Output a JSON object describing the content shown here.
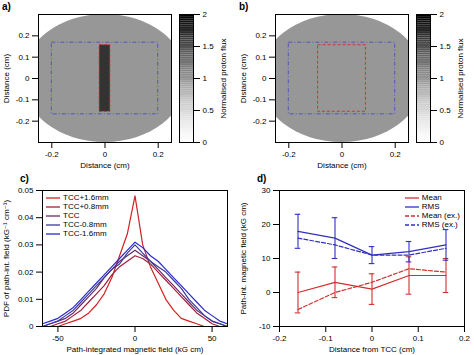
{
  "chart_data": [
    {
      "type": "image",
      "title": "a)",
      "xlabel": "Distance (cm)",
      "ylabel": "Distance (cm)",
      "xlim": [
        -0.25,
        0.25
      ],
      "xticks": [
        -0.2,
        0,
        0.2
      ],
      "ylim": [
        -0.3,
        0.3
      ],
      "yticks": [
        -0.2,
        -0.1,
        0,
        0.1,
        0.2
      ],
      "colorbar": {
        "label": "Normalised proton flux",
        "range": [
          0,
          2
        ],
        "ticks": [
          0,
          0.5,
          1,
          1.5,
          2
        ]
      }
    },
    {
      "type": "image",
      "title": "b)",
      "xlabel": "Distance (cm)",
      "ylabel": "Distance (cm)",
      "xlim": [
        -0.25,
        0.25
      ],
      "xticks": [
        -0.2,
        0,
        0.2
      ],
      "ylim": [
        -0.3,
        0.3
      ],
      "yticks": [
        -0.2,
        -0.1,
        0,
        0.1,
        0.2
      ],
      "colorbar": {
        "label": "Normalised proton flux",
        "range": [
          0,
          2
        ],
        "ticks": [
          0,
          0.5,
          1,
          1.5,
          2
        ]
      }
    },
    {
      "type": "line",
      "title": "c)",
      "xlabel": "Path-integrated magnetic field (kG cm)",
      "ylabel": "PDF of path-int. field (kG⁻¹ cm⁻¹)",
      "xlim": [
        -60,
        60
      ],
      "xticks": [
        -50,
        0,
        50
      ],
      "ylim": [
        0,
        0.05
      ],
      "yticks": [
        0,
        0.01,
        0.02,
        0.03,
        0.04,
        0.05
      ],
      "legend": "top-left",
      "x": [
        -60,
        -55,
        -50,
        -45,
        -40,
        -35,
        -30,
        -25,
        -20,
        -15,
        -10,
        -5,
        0,
        5,
        10,
        15,
        20,
        25,
        30,
        35,
        40,
        45,
        50,
        55,
        60
      ],
      "series": [
        {
          "name": "TCC+1.6mm",
          "color": "#d42020",
          "line_style": "solid",
          "values": [
            0,
            0,
            0,
            0.001,
            0.002,
            0.003,
            0.005,
            0.008,
            0.012,
            0.018,
            0.026,
            0.034,
            0.048,
            0.03,
            0.022,
            0.016,
            0.01,
            0.006,
            0.003,
            0.002,
            0.001,
            0,
            0,
            0,
            0
          ]
        },
        {
          "name": "TCC+0.8mm",
          "color": "#a0203a",
          "line_style": "solid",
          "values": [
            0,
            0,
            0.001,
            0.002,
            0.004,
            0.006,
            0.009,
            0.012,
            0.015,
            0.019,
            0.022,
            0.024,
            0.026,
            0.025,
            0.023,
            0.02,
            0.017,
            0.014,
            0.011,
            0.008,
            0.005,
            0.003,
            0.001,
            0,
            0
          ]
        },
        {
          "name": "TCC",
          "color": "#6a2a6a",
          "line_style": "solid",
          "values": [
            0,
            0.001,
            0.002,
            0.003,
            0.005,
            0.008,
            0.011,
            0.014,
            0.018,
            0.021,
            0.024,
            0.026,
            0.028,
            0.026,
            0.024,
            0.021,
            0.018,
            0.015,
            0.012,
            0.009,
            0.006,
            0.004,
            0.002,
            0.001,
            0
          ]
        },
        {
          "name": "TCC-0.8mm",
          "color": "#3a3a9a",
          "line_style": "solid",
          "values": [
            0,
            0.001,
            0.002,
            0.004,
            0.006,
            0.009,
            0.012,
            0.015,
            0.018,
            0.021,
            0.023,
            0.027,
            0.03,
            0.027,
            0.024,
            0.022,
            0.02,
            0.017,
            0.014,
            0.01,
            0.007,
            0.004,
            0.002,
            0.001,
            0
          ]
        },
        {
          "name": "TCC-1.6mm",
          "color": "#2a2ad0",
          "line_style": "solid",
          "values": [
            0.001,
            0.002,
            0.003,
            0.005,
            0.007,
            0.01,
            0.013,
            0.016,
            0.019,
            0.022,
            0.025,
            0.028,
            0.031,
            0.029,
            0.026,
            0.024,
            0.021,
            0.018,
            0.015,
            0.012,
            0.009,
            0.006,
            0.004,
            0.002,
            0.001
          ]
        }
      ]
    },
    {
      "type": "line",
      "title": "d)",
      "xlabel": "Distance from TCC (cm)",
      "ylabel": "Path-int. magnetic field (kG cm)",
      "xlim": [
        -0.2,
        0.2
      ],
      "xticks": [
        -0.2,
        -0.1,
        0,
        0.1,
        0.2
      ],
      "ylim": [
        -10,
        30
      ],
      "yticks": [
        -10,
        0,
        10,
        20,
        30
      ],
      "legend": "top-right",
      "x": [
        -0.16,
        -0.08,
        0,
        0.08,
        0.16
      ],
      "series": [
        {
          "name": "Mean",
          "color": "#d03030",
          "line_style": "solid",
          "values": [
            0,
            3,
            1,
            5,
            5
          ],
          "errors": [
            6,
            4.5,
            4.5,
            5.5,
            5
          ]
        },
        {
          "name": "RMS",
          "color": "#3030c0",
          "line_style": "solid",
          "values": [
            18,
            16,
            11,
            12,
            14
          ],
          "errors": [
            5,
            6,
            2.5,
            3,
            4.5
          ]
        },
        {
          "name": "Mean (ex.)",
          "color": "#d03030",
          "line_style": "dashed",
          "values": [
            -5,
            0,
            3,
            7,
            6
          ]
        },
        {
          "name": "RMS (ex.)",
          "color": "#3030c0",
          "line_style": "dashed",
          "values": [
            16,
            14,
            11,
            11,
            13
          ]
        }
      ]
    }
  ]
}
